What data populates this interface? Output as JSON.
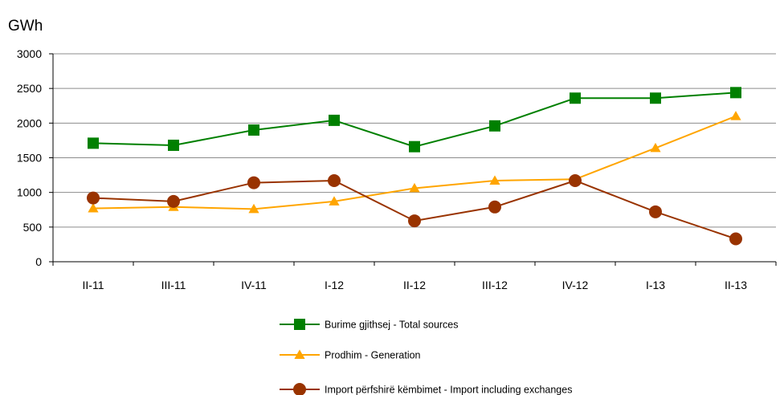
{
  "chart_data": {
    "type": "line",
    "unit_label": "GWh",
    "categories": [
      "II-11",
      "III-11",
      "IV-11",
      "I-12",
      "II-12",
      "III-12",
      "IV-12",
      "I-13",
      "II-13"
    ],
    "category_labels": [
      "II-11",
      "III-11",
      "IV-11",
      "I-12",
      "II-12",
      "III-12",
      "IV-12",
      "I-13",
      "II-13"
    ],
    "ylim": [
      0,
      3000
    ],
    "yticks": [
      0,
      500,
      1000,
      1500,
      2000,
      2500,
      3000
    ],
    "ytick_labels": [
      "0",
      "500",
      "1000",
      "1500",
      "2000",
      "2500",
      "3000"
    ],
    "grid": true,
    "legend_position": "bottom",
    "series": [
      {
        "name": "Burime gjithsej - Total sources",
        "color": "#008000",
        "marker": "square",
        "values": [
          1710,
          1680,
          1900,
          2040,
          1660,
          1960,
          2360,
          2360,
          2440
        ]
      },
      {
        "name": "Prodhim - Generation",
        "color": "#ffa500",
        "marker": "triangle",
        "values": [
          770,
          790,
          760,
          870,
          1060,
          1170,
          1190,
          1640,
          2100
        ]
      },
      {
        "name": "Import përfshirë këmbimet - Import including exchanges",
        "color": "#993300",
        "marker": "circle",
        "values": [
          920,
          870,
          1140,
          1170,
          590,
          790,
          1170,
          720,
          330
        ]
      }
    ]
  }
}
